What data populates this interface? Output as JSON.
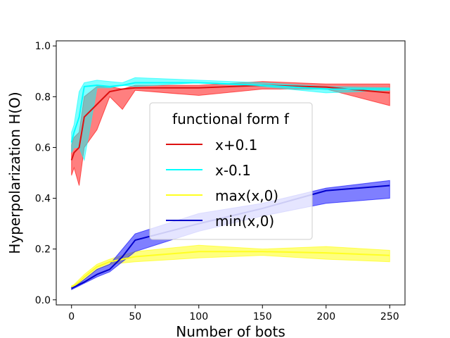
{
  "chart_data": {
    "type": "line",
    "xlabel": "Number of bots",
    "ylabel": "Hyperpolarization H(O)",
    "xlim": [
      -12,
      262
    ],
    "ylim": [
      -0.02,
      1.02
    ],
    "x_ticks": [
      0,
      50,
      100,
      150,
      200,
      250
    ],
    "y_ticks": [
      0.0,
      0.2,
      0.4,
      0.6,
      0.8,
      1.0
    ],
    "x_tick_labels": [
      "0",
      "50",
      "100",
      "150",
      "200",
      "250"
    ],
    "y_tick_labels": [
      "0.0",
      "0.2",
      "0.4",
      "0.6",
      "0.8",
      "1.0"
    ],
    "legend": {
      "title": "functional form f",
      "placement": "center"
    },
    "series": [
      {
        "name": "x+0.1",
        "color": "#dd1111",
        "fill": "#ff0000",
        "x": [
          0,
          2,
          6,
          10,
          20,
          30,
          40,
          50,
          100,
          150,
          200,
          250
        ],
        "y": [
          0.55,
          0.58,
          0.6,
          0.72,
          0.77,
          0.82,
          0.83,
          0.835,
          0.835,
          0.845,
          0.838,
          0.815
        ],
        "upper": [
          0.61,
          0.64,
          0.66,
          0.8,
          0.84,
          0.84,
          0.83,
          0.845,
          0.845,
          0.86,
          0.85,
          0.85
        ],
        "lower": [
          0.49,
          0.52,
          0.45,
          0.6,
          0.67,
          0.8,
          0.75,
          0.825,
          0.805,
          0.83,
          0.83,
          0.765
        ]
      },
      {
        "name": "x-0.1",
        "color": "#00ffff",
        "fill": "#00ffff",
        "x": [
          0,
          2,
          6,
          10,
          20,
          30,
          40,
          50,
          100,
          150,
          200,
          250
        ],
        "y": [
          0.62,
          0.66,
          0.72,
          0.84,
          0.845,
          0.84,
          0.845,
          0.855,
          0.855,
          0.845,
          0.83,
          0.83
        ],
        "upper": [
          0.66,
          0.69,
          0.82,
          0.855,
          0.865,
          0.86,
          0.855,
          0.875,
          0.865,
          0.855,
          0.84,
          0.835
        ],
        "lower": [
          0.58,
          0.6,
          0.6,
          0.55,
          0.835,
          0.835,
          0.845,
          0.84,
          0.855,
          0.84,
          0.815,
          0.825
        ]
      },
      {
        "name": "max(x,0)",
        "color": "#ffff22",
        "fill": "#ffff00",
        "x": [
          0,
          2,
          6,
          10,
          20,
          30,
          40,
          50,
          100,
          150,
          200,
          250
        ],
        "y": [
          0.05,
          0.055,
          0.07,
          0.09,
          0.13,
          0.15,
          0.16,
          0.17,
          0.19,
          0.19,
          0.185,
          0.175
        ],
        "upper": [
          0.055,
          0.06,
          0.08,
          0.1,
          0.14,
          0.16,
          0.175,
          0.19,
          0.215,
          0.2,
          0.21,
          0.195
        ],
        "lower": [
          0.045,
          0.05,
          0.065,
          0.08,
          0.12,
          0.14,
          0.145,
          0.15,
          0.165,
          0.175,
          0.16,
          0.15
        ]
      },
      {
        "name": "min(x,0)",
        "color": "#0000cc",
        "fill": "#0000ff",
        "x": [
          0,
          2,
          6,
          10,
          20,
          30,
          40,
          50,
          100,
          150,
          200,
          250
        ],
        "y": [
          0.045,
          0.05,
          0.06,
          0.07,
          0.1,
          0.12,
          0.17,
          0.235,
          0.3,
          0.36,
          0.43,
          0.45
        ],
        "upper": [
          0.05,
          0.055,
          0.065,
          0.08,
          0.12,
          0.14,
          0.2,
          0.26,
          0.34,
          0.38,
          0.44,
          0.47
        ],
        "lower": [
          0.04,
          0.045,
          0.055,
          0.065,
          0.09,
          0.11,
          0.15,
          0.19,
          0.27,
          0.33,
          0.38,
          0.4
        ]
      }
    ]
  }
}
